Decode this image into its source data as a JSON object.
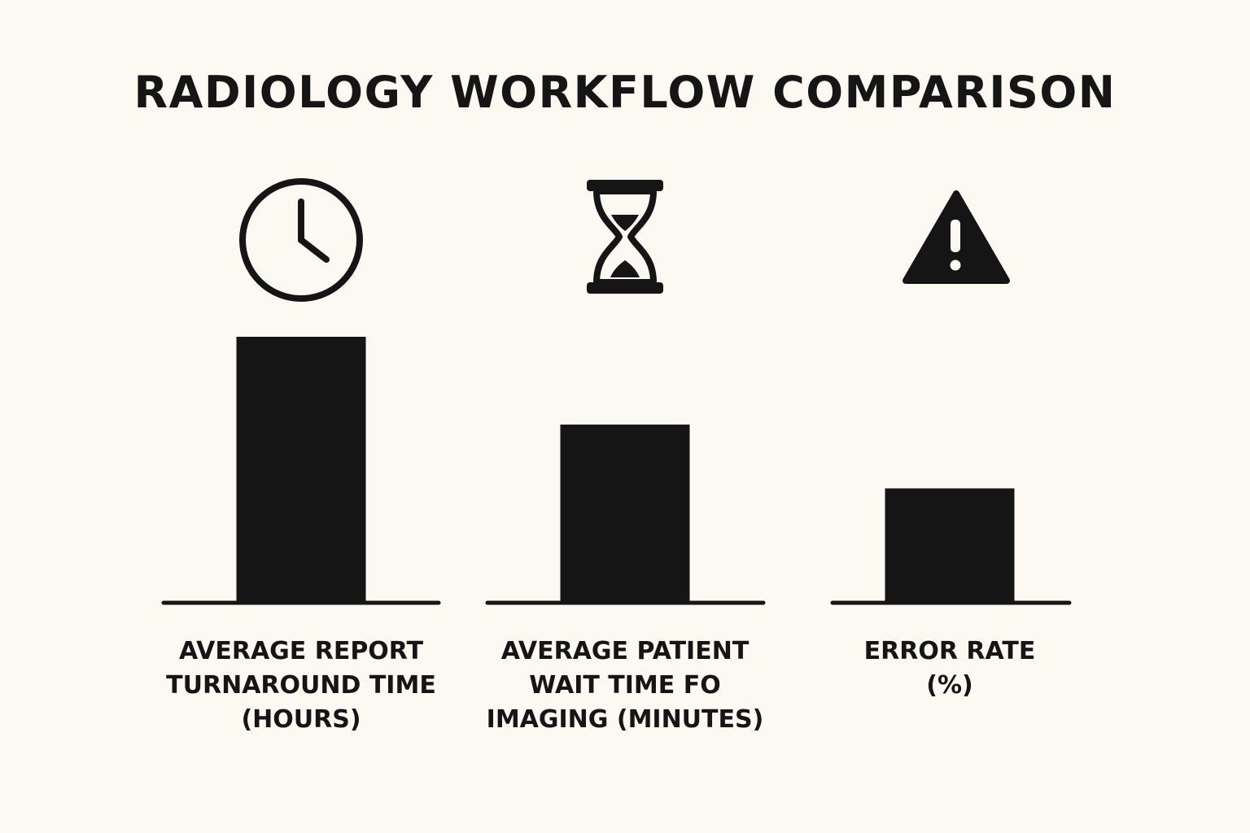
{
  "chart_data": {
    "type": "bar",
    "title": "RADIOLOGY WORKFLOW COMPARISON",
    "categories": [
      [
        "AVERAGE REPORT",
        "TURNAROUND TIME",
        "(HOURS)"
      ],
      [
        "AVERAGE PATIENT",
        "WAIT TIME FO",
        "IMAGING (MINUTES)"
      ],
      [
        "ERROR RATE",
        "(%)"
      ]
    ],
    "values": [
      100,
      67,
      43
    ],
    "icons": [
      "clock-icon",
      "hourglass-icon",
      "warning-icon"
    ],
    "ylim": [
      0,
      100
    ],
    "axis_labels_shown": false,
    "grid": false,
    "bar_color": "#151515"
  }
}
